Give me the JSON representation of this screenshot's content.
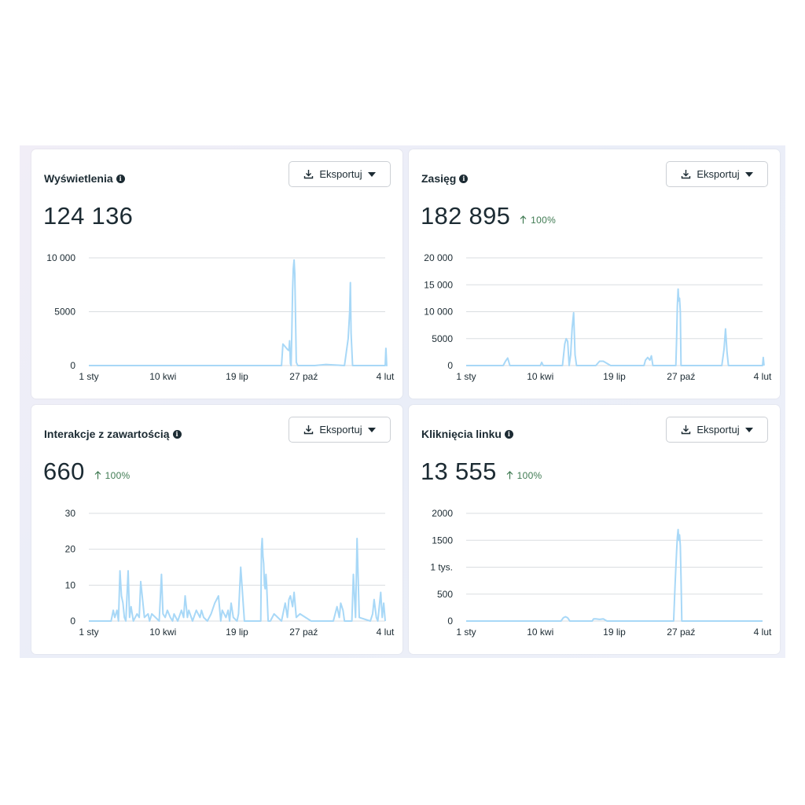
{
  "colors": {
    "line": "#a8d8f7",
    "grid": "#dadde1",
    "trend": "#3f7a52"
  },
  "icons": {
    "info": "info-icon",
    "download": "download-icon",
    "caret": "caret-down-icon",
    "arrow_up": "arrow-up-icon"
  },
  "cards": [
    {
      "title": "Wyświetlenia",
      "export_label": "Eksportuj",
      "value": "124 136",
      "trend": ""
    },
    {
      "title": "Zasięg",
      "export_label": "Eksportuj",
      "value": "182 895",
      "trend": "100%"
    },
    {
      "title": "Interakcje z zawartością",
      "export_label": "Eksportuj",
      "value": "660",
      "trend": "100%"
    },
    {
      "title": "Kliknięcia linku",
      "export_label": "Eksportuj",
      "value": "13 555",
      "trend": "100%"
    }
  ],
  "chart_data": [
    {
      "type": "line",
      "ylim": [
        0,
        10000
      ],
      "yticks": [
        0,
        5000,
        10000
      ],
      "ytick_labels": [
        "0",
        "5000",
        "10 000"
      ],
      "xtick_labels": [
        "1 sty",
        "10 kwi",
        "19 lip",
        "27 paź",
        "4 lut"
      ],
      "xlim": [
        0,
        400
      ],
      "xtick_positions": [
        0,
        100,
        200,
        290,
        400
      ],
      "series": [
        {
          "x": [
            0,
            260,
            262,
            268,
            270,
            271,
            272,
            273,
            274,
            275,
            276,
            277,
            278,
            280,
            282,
            285,
            290,
            292,
            293,
            294,
            295,
            296,
            297,
            298,
            299,
            300,
            301,
            302,
            303,
            305,
            320,
            345,
            350,
            352,
            353,
            354,
            356,
            358,
            400,
            401,
            402,
            403
          ],
          "y": [
            0,
            0,
            2000,
            1500,
            1400,
            2300,
            200,
            0,
            3000,
            7000,
            9000,
            9800,
            8500,
            300,
            0,
            0,
            0,
            0,
            0,
            0,
            0,
            0,
            0,
            0,
            0,
            0,
            0,
            0,
            0,
            0,
            100,
            0,
            2500,
            5000,
            7700,
            3000,
            0,
            0,
            0,
            1600,
            0,
            0
          ]
        }
      ]
    },
    {
      "type": "line",
      "ylim": [
        0,
        20000
      ],
      "yticks": [
        0,
        5000,
        10000,
        15000,
        20000
      ],
      "ytick_labels": [
        "0",
        "5000",
        "10 000",
        "15 000",
        "20 000"
      ],
      "xtick_labels": [
        "1 sty",
        "10 kwi",
        "19 lip",
        "27 paź",
        "4 lut"
      ],
      "xlim": [
        0,
        400
      ],
      "xtick_positions": [
        0,
        100,
        200,
        290,
        400
      ],
      "series": [
        {
          "x": [
            0,
            50,
            53,
            56,
            59,
            100,
            102,
            104,
            130,
            133,
            135,
            137,
            139,
            141,
            143,
            145,
            147,
            149,
            151,
            175,
            180,
            185,
            195,
            240,
            242,
            245,
            248,
            250,
            252,
            255,
            283,
            284,
            285,
            286,
            287,
            288,
            289,
            290,
            291,
            293,
            345,
            348,
            350,
            352,
            354,
            400,
            401,
            402
          ],
          "y": [
            0,
            0,
            800,
            1400,
            0,
            0,
            600,
            0,
            0,
            4000,
            5000,
            4500,
            0,
            2000,
            7000,
            9800,
            2000,
            0,
            0,
            0,
            800,
            800,
            0,
            0,
            1000,
            1500,
            1000,
            1800,
            0,
            0,
            0,
            5000,
            11000,
            14200,
            12000,
            12500,
            10000,
            0,
            0,
            0,
            0,
            3000,
            6800,
            2500,
            0,
            0,
            1500,
            0
          ]
        }
      ]
    },
    {
      "type": "line",
      "ylim": [
        0,
        30
      ],
      "yticks": [
        0,
        10,
        20,
        30
      ],
      "ytick_labels": [
        "0",
        "10",
        "20",
        "30"
      ],
      "xtick_labels": [
        "1 sty",
        "10 kwi",
        "19 lip",
        "27 paź",
        "4 lut"
      ],
      "xlim": [
        0,
        400
      ],
      "xtick_positions": [
        0,
        100,
        200,
        290,
        400
      ],
      "series": [
        {
          "x": [
            0,
            30,
            33,
            35,
            38,
            40,
            42,
            44,
            46,
            48,
            50,
            53,
            55,
            57,
            60,
            65,
            68,
            70,
            75,
            80,
            82,
            85,
            90,
            95,
            98,
            100,
            103,
            106,
            110,
            113,
            115,
            120,
            125,
            128,
            130,
            133,
            135,
            140,
            145,
            150,
            152,
            155,
            160,
            165,
            170,
            175,
            178,
            180,
            185,
            188,
            190,
            192,
            195,
            200,
            202,
            205,
            210,
            220,
            232,
            233,
            234,
            235,
            236,
            237,
            238,
            239,
            240,
            242,
            245,
            250,
            255,
            260,
            265,
            268,
            270,
            272,
            275,
            277,
            280,
            285,
            300,
            330,
            335,
            338,
            340,
            343,
            345,
            350,
            355,
            357,
            360,
            362,
            365,
            380,
            383,
            385,
            388,
            390,
            394,
            396,
            398,
            400
          ],
          "y": [
            0,
            0,
            3,
            1,
            3,
            0,
            14,
            7,
            5,
            1,
            0,
            14,
            1,
            4,
            0,
            2,
            1,
            11,
            1,
            2,
            0,
            2,
            1,
            0,
            13,
            2,
            1,
            3,
            1,
            0,
            2,
            0,
            3,
            1,
            7,
            1,
            3,
            0,
            3,
            1,
            3,
            1,
            0,
            2,
            5,
            7,
            0,
            3,
            1,
            3,
            0,
            5,
            1,
            0,
            2,
            15,
            0,
            0,
            0,
            20,
            23,
            18,
            16,
            10,
            9,
            13,
            10,
            0,
            0,
            2,
            1,
            0,
            5,
            1,
            6,
            7,
            4,
            8,
            1,
            2,
            0,
            0,
            4,
            1,
            5,
            3,
            0,
            0,
            0,
            13,
            1,
            23,
            1,
            0,
            2,
            6,
            1,
            0,
            8,
            1,
            5,
            0
          ]
        }
      ]
    },
    {
      "type": "line",
      "ylim": [
        0,
        2000
      ],
      "yticks": [
        0,
        500,
        1000,
        1500,
        2000
      ],
      "ytick_labels": [
        "0",
        "500",
        "1 tys.",
        "1500",
        "2000"
      ],
      "xtick_labels": [
        "1 sty",
        "10 kwi",
        "19 lip",
        "27 paź",
        "4 lut"
      ],
      "xlim": [
        0,
        400
      ],
      "xtick_positions": [
        0,
        100,
        200,
        290,
        400
      ],
      "series": [
        {
          "x": [
            0,
            128,
            131,
            134,
            137,
            140,
            170,
            172,
            175,
            180,
            185,
            190,
            280,
            282,
            284,
            285,
            286,
            287,
            288,
            289,
            290,
            291,
            292,
            400
          ],
          "y": [
            0,
            0,
            60,
            80,
            60,
            0,
            0,
            40,
            40,
            30,
            40,
            0,
            0,
            700,
            1300,
            1550,
            1700,
            1500,
            1600,
            1400,
            800,
            0,
            0,
            0
          ]
        }
      ]
    }
  ]
}
